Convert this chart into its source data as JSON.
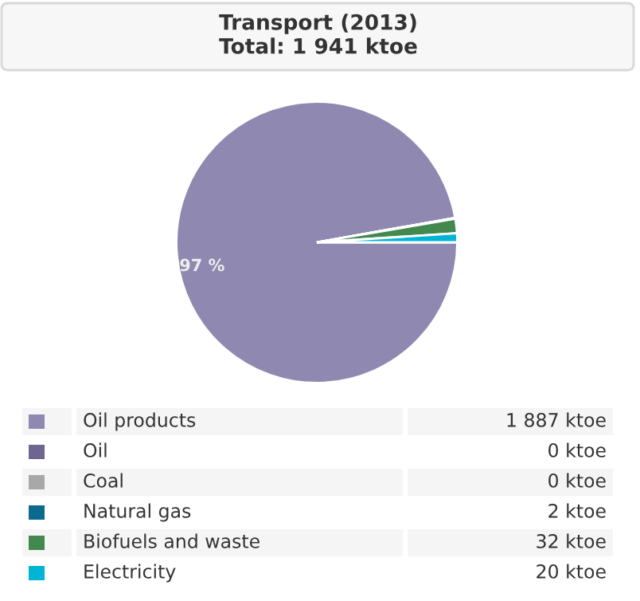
{
  "chart_data": {
    "type": "pie",
    "title": "Transport (2013)",
    "subtitle": "Total: 1 941 ktoe",
    "categories": [
      "Oil products",
      "Oil",
      "Coal",
      "Natural gas",
      "Biofuels and waste",
      "Electricity"
    ],
    "values": [
      1887,
      0,
      0,
      2,
      32,
      20
    ],
    "colors": [
      "#8f88b0",
      "#6e6590",
      "#a8a8a8",
      "#0c6a8f",
      "#43894f",
      "#00b4d6"
    ],
    "value_labels": [
      "1 887 ktoe",
      "0 ktoe",
      "0 ktoe",
      "2 ktoe",
      "32 ktoe",
      "20 ktoe"
    ],
    "annotations": [
      {
        "text": "97 %",
        "x": "Oil products"
      }
    ],
    "legend": "bottom"
  }
}
